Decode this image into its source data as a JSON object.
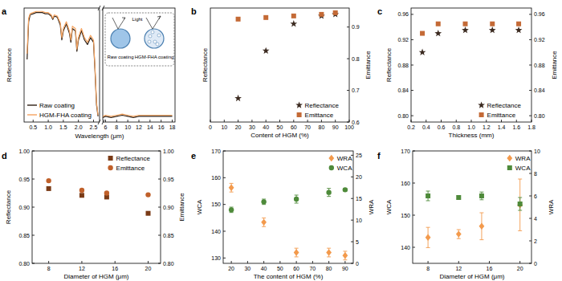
{
  "chart_data": [
    {
      "type": "line",
      "title": "a",
      "x_label": "Wavelength (μm)",
      "y_label": "Reflectance",
      "x": [
        0.3,
        0.35,
        0.4,
        0.5,
        0.6,
        0.7,
        0.8,
        0.9,
        1.0,
        1.1,
        1.15,
        1.2,
        1.3,
        1.4,
        1.45,
        1.5,
        1.6,
        1.7,
        1.75,
        1.8,
        1.9,
        1.95,
        2.0,
        2.1,
        2.2,
        2.3,
        2.4,
        2.5,
        2.55,
        2.6,
        2.65
      ],
      "xlim": [
        0.2,
        2.7
      ],
      "xticks": [
        0.5,
        {
          "value": 1,
          "label": "1.0"
        },
        1.5,
        {
          "value": 2,
          "label": "2.0"
        },
        2.5
      ],
      "ylim": [
        0,
        1
      ],
      "tick_labels": "x",
      "legend": "lower left",
      "series": [
        {
          "name": "Raw coating",
          "color": "#2e1f14",
          "values": [
            0.55,
            0.88,
            0.94,
            0.95,
            0.96,
            0.96,
            0.96,
            0.95,
            0.95,
            0.93,
            0.9,
            0.93,
            0.92,
            0.85,
            0.72,
            0.8,
            0.86,
            0.78,
            0.7,
            0.82,
            0.8,
            0.62,
            0.72,
            0.8,
            0.72,
            0.68,
            0.74,
            0.7,
            0.45,
            0.15,
            0.05
          ]
        },
        {
          "name": "HGM-FHA coating",
          "color": "#f5a35f",
          "values": [
            0.6,
            0.91,
            0.95,
            0.96,
            0.97,
            0.97,
            0.97,
            0.96,
            0.96,
            0.94,
            0.91,
            0.94,
            0.93,
            0.87,
            0.74,
            0.82,
            0.88,
            0.8,
            0.72,
            0.84,
            0.82,
            0.64,
            0.74,
            0.82,
            0.74,
            0.7,
            0.76,
            0.72,
            0.47,
            0.17,
            0.06
          ]
        }
      ],
      "annotations": [
        "Light",
        "Raw coating",
        "HGM-FHA coating"
      ]
    },
    {
      "type": "line",
      "x": [
        5.5,
        6,
        7,
        8,
        9,
        10,
        11,
        12,
        13,
        14,
        15,
        16,
        17,
        18
      ],
      "xlim": [
        5.5,
        18.5
      ],
      "xticks": [
        6,
        8,
        10,
        12,
        14,
        16,
        18
      ],
      "ylim": [
        0,
        1
      ],
      "tick_labels": "x",
      "series": [
        {
          "color": "#2e1f14",
          "values": [
            0.04,
            0.05,
            0.04,
            0.05,
            0.06,
            0.05,
            0.04,
            0.05,
            0.05,
            0.05,
            0.05,
            0.05,
            0.05,
            0.05
          ]
        },
        {
          "color": "#f5a35f",
          "values": [
            0.05,
            0.06,
            0.05,
            0.06,
            0.07,
            0.06,
            0.05,
            0.06,
            0.06,
            0.06,
            0.06,
            0.06,
            0.06,
            0.06
          ]
        }
      ]
    },
    {
      "type": "scatter",
      "title": "b",
      "x_label": "Content of HGM (%)",
      "y_label": "Reflectance",
      "y2_label": "Emittance",
      "x": [
        20,
        40,
        60,
        80,
        90
      ],
      "xlim": [
        0,
        100
      ],
      "xticks": [
        0,
        10,
        20,
        30,
        40,
        50,
        60,
        70,
        80,
        90,
        100
      ],
      "ylim": [
        0.6,
        0.96
      ],
      "y2lim": [
        0.6,
        0.96
      ],
      "y2ticks": [
        0.6,
        0.7,
        0.8,
        0.9
      ],
      "legend": "lower right",
      "series": [
        {
          "name": "Reflectance",
          "color": "#3b2a20",
          "marker": "star",
          "values": [
            0.675,
            0.825,
            0.91,
            0.935,
            0.94
          ]
        },
        {
          "name": "Emittance",
          "color": "#c46a36",
          "marker": "square",
          "axis": "y2",
          "values": [
            0.925,
            0.93,
            0.935,
            0.94,
            0.945
          ]
        }
      ]
    },
    {
      "type": "scatter",
      "title": "c",
      "x_label": "Thickness (mm)",
      "y_label": "Reflectance",
      "y2_label": "Emittance",
      "x": [
        0.35,
        0.56,
        0.92,
        1.28,
        1.63
      ],
      "xlim": [
        0.2,
        1.8
      ],
      "xticks": [
        0.2,
        0.4,
        0.6,
        0.8,
        {
          "value": 1,
          "label": "1.0"
        },
        1.2,
        1.4,
        1.6,
        1.8
      ],
      "ylim": [
        0.79,
        0.97
      ],
      "yticks": [
        {
          "value": 0.8,
          "label": "0.80"
        },
        0.84,
        0.88,
        0.92,
        0.96
      ],
      "y2lim": [
        0.79,
        0.97
      ],
      "y2ticks": [
        {
          "value": 0.8,
          "label": "0.80"
        },
        0.84,
        0.88,
        0.92,
        0.96
      ],
      "legend": "lower right",
      "series": [
        {
          "name": "Reflectance",
          "color": "#3b2a20",
          "marker": "star",
          "values": [
            0.9,
            0.93,
            0.935,
            0.935,
            0.935
          ]
        },
        {
          "name": "Emittance",
          "color": "#c46a36",
          "marker": "square",
          "axis": "y2",
          "values": [
            0.93,
            0.945,
            0.945,
            0.945,
            0.945
          ]
        }
      ]
    },
    {
      "type": "scatter",
      "title": "d",
      "x_label": "Diameter of HGM (μm)",
      "y_label": "Reflectance",
      "y2_label": "Emittance",
      "x": [
        8,
        12,
        15,
        20
      ],
      "xlim": [
        6,
        21.5
      ],
      "xticks": [
        8,
        12,
        16,
        20
      ],
      "ylim": [
        0.8,
        1
      ],
      "yticks": [
        {
          "value": 0.8,
          "label": "0.80"
        },
        0.85,
        {
          "value": 0.9,
          "label": "0.90"
        },
        0.95,
        {
          "value": 1,
          "label": "1.00"
        }
      ],
      "y2lim": [
        0.8,
        1
      ],
      "y2ticks": [
        {
          "value": 0.8,
          "label": "0.80"
        },
        0.85,
        {
          "value": 0.9,
          "label": "0.90"
        },
        0.95,
        {
          "value": 1,
          "label": "1.00"
        }
      ],
      "legend": "upper right",
      "series": [
        {
          "name": "Reflectance",
          "color": "#7a3b17",
          "marker": "square",
          "values": [
            0.933,
            0.921,
            0.918,
            0.889
          ]
        },
        {
          "name": "Emittance",
          "color": "#c0602a",
          "marker": "circle",
          "axis": "y2",
          "values": [
            0.947,
            0.93,
            0.925,
            0.922
          ]
        }
      ]
    },
    {
      "type": "scatter",
      "title": "e",
      "x_label": "The content of HGM (%)",
      "y_label": "WCA",
      "y2_label": "WRA",
      "x": [
        20,
        40,
        60,
        80,
        90
      ],
      "xlim": [
        15,
        95
      ],
      "xticks": [
        20,
        30,
        40,
        50,
        60,
        70,
        80,
        90
      ],
      "ylim": [
        128,
        170
      ],
      "yticks": [
        130,
        140,
        150,
        160,
        170
      ],
      "y2lim": [
        0,
        26
      ],
      "y2ticks": [
        0,
        5,
        10,
        15,
        20,
        25
      ],
      "legend": "upper right",
      "series": [
        {
          "name": "WRA",
          "color": "#f39a4c",
          "marker": "diamond",
          "axis": "y2",
          "values": [
            17.5,
            9.5,
            2.5,
            2.5,
            1.8
          ],
          "errors": [
            1,
            1,
            1,
            1,
            1
          ]
        },
        {
          "name": "WCA",
          "color": "#4e8a3a",
          "marker": "circle",
          "values": [
            148,
            151,
            152,
            154.5,
            155.5
          ],
          "errors": [
            1,
            1,
            1.5,
            1.5,
            0.5
          ]
        }
      ]
    },
    {
      "type": "scatter",
      "title": "f",
      "x_label": "Diameter of HGM (μm)",
      "y_label": "WCA",
      "y2_label": "WRA",
      "x": [
        8,
        12,
        15,
        20
      ],
      "xlim": [
        6,
        21.5
      ],
      "xticks": [
        8,
        12,
        16,
        20
      ],
      "ylim": [
        135,
        170
      ],
      "yticks": [
        140,
        150,
        160,
        170
      ],
      "y2lim": [
        0,
        10
      ],
      "y2ticks": [
        0,
        2,
        4,
        6,
        8,
        10
      ],
      "legend": "upper right",
      "series": [
        {
          "name": "WRA",
          "color": "#f39a4c",
          "marker": "diamond",
          "axis": "y2",
          "values": [
            2.3,
            2.6,
            3.3,
            5.2
          ],
          "errors": [
            0.9,
            0.4,
            1.2,
            2.3
          ]
        },
        {
          "name": "WCA",
          "color": "#4e8a3a",
          "marker": "square",
          "values": [
            156,
            155.5,
            156,
            153.5
          ],
          "errors": [
            1.5,
            0.5,
            1.2,
            2
          ]
        }
      ]
    }
  ]
}
